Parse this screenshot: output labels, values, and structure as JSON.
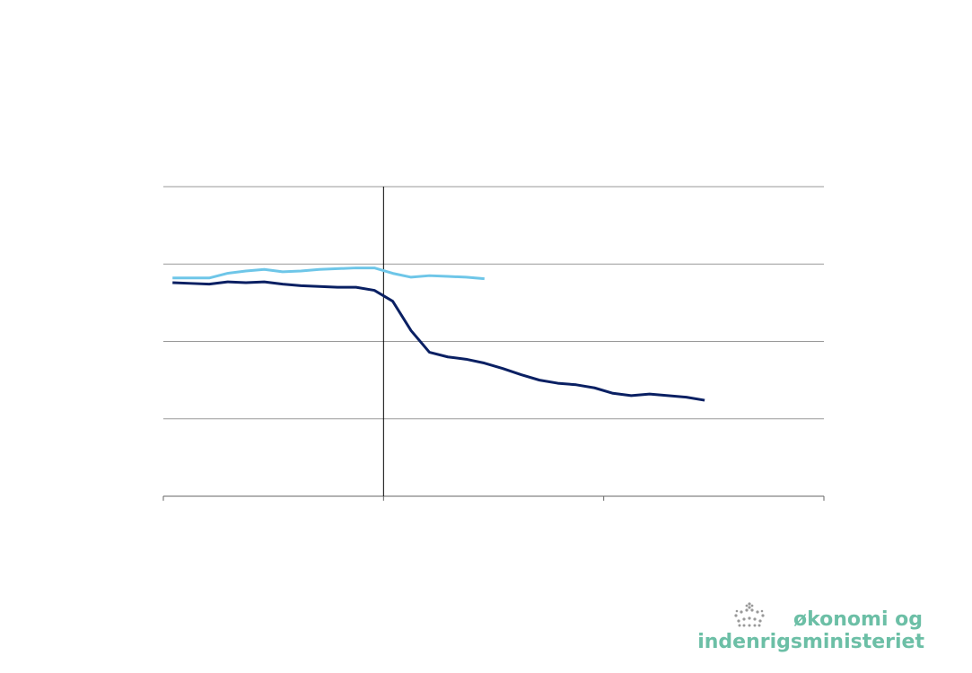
{
  "chart_data": {
    "type": "line",
    "x": [
      0.5,
      1.5,
      2.5,
      3.5,
      4.5,
      5.5,
      6.5,
      7.5,
      8.5,
      9.5,
      10.5,
      11.5,
      12.5,
      13.5,
      14.5,
      15.5,
      16.5,
      17.5,
      18.5,
      19.5,
      20.5,
      21.5,
      22.5,
      23.5,
      24.5,
      25.5,
      26.5,
      27.5,
      28.5,
      29.5
    ],
    "series": [
      {
        "color": "#0a2063",
        "values": [
          2.76,
          2.75,
          2.74,
          2.77,
          2.76,
          2.77,
          2.74,
          2.72,
          2.71,
          2.7,
          2.7,
          2.66,
          2.52,
          2.14,
          1.86,
          1.8,
          1.77,
          1.72,
          1.65,
          1.57,
          1.5,
          1.46,
          1.44,
          1.4,
          1.33,
          1.3,
          1.32,
          1.3,
          1.28,
          1.24
        ]
      },
      {
        "color": "#6ec6e8",
        "values": [
          2.82,
          2.82,
          2.82,
          2.88,
          2.91,
          2.93,
          2.9,
          2.91,
          2.93,
          2.94,
          2.95,
          2.95,
          2.88,
          2.83,
          2.85,
          2.84,
          2.83,
          2.81,
          null,
          null,
          null,
          null,
          null,
          null,
          null,
          null,
          null,
          null,
          null,
          null
        ]
      }
    ],
    "xlim": [
      0,
      36
    ],
    "xticks": [
      0,
      12,
      24,
      36
    ],
    "ylim": [
      0,
      4
    ],
    "yticks": [
      0,
      1,
      2,
      3,
      4
    ],
    "grid": true,
    "vline": 12,
    "tick_labels": false
  },
  "logo": {
    "line1": "økonomi og",
    "line2": "indenrigsministeriet"
  }
}
